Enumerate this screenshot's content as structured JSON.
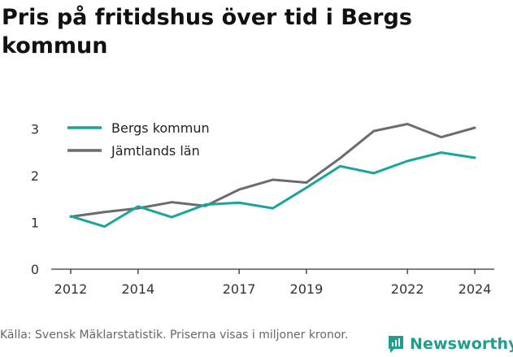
{
  "title": "Pris på fritidshus över tid i Bergs kommun",
  "source_text": "Källa: Svensk Mäklarstatistik. Priserna visas i miljoner kronor.",
  "brand": {
    "name": "Newsworthy"
  },
  "colors": {
    "bergs": "#1aa59a",
    "jamtland": "#6b6b70",
    "axis": "#333333",
    "brand": "#1f9e8e"
  },
  "chart_data": {
    "type": "line",
    "x": [
      2012,
      2013,
      2014,
      2015,
      2016,
      2017,
      2018,
      2019,
      2020,
      2021,
      2022,
      2023,
      2024
    ],
    "x_ticks": [
      2012,
      2014,
      2017,
      2019,
      2022,
      2024
    ],
    "y_ticks": [
      0,
      1,
      2,
      3
    ],
    "xlim": [
      2012,
      2024
    ],
    "ylim": [
      0,
      3.3
    ],
    "grid": false,
    "legend_position": "top-left",
    "title": "Pris på fritidshus över tid i Bergs kommun",
    "xlabel": "",
    "ylabel": "",
    "series": [
      {
        "name": "Bergs kommun",
        "color": "#1aa59a",
        "values": [
          1.13,
          0.91,
          1.34,
          1.11,
          1.38,
          1.42,
          1.3,
          1.74,
          2.2,
          2.05,
          2.31,
          2.49,
          2.38
        ]
      },
      {
        "name": "Jämtlands län",
        "color": "#6b6b70",
        "values": [
          1.12,
          1.22,
          1.3,
          1.43,
          1.35,
          1.7,
          1.91,
          1.85,
          2.37,
          2.95,
          3.1,
          2.82,
          3.02
        ]
      }
    ]
  }
}
